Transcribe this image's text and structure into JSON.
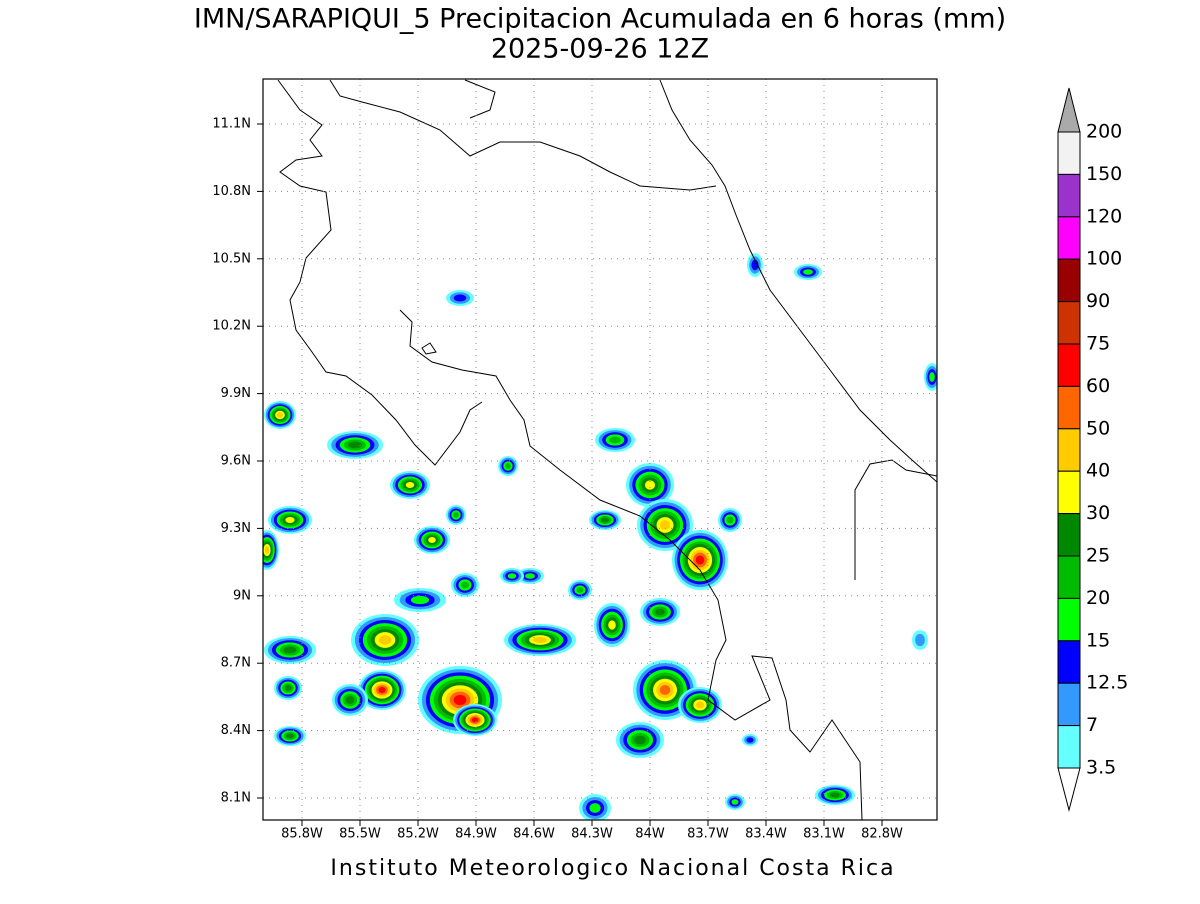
{
  "title": "IMN/SARAPIQUI_5 Precipitacion Acumulada en 6 horas (mm)",
  "subtitle": "2025-09-26 12Z",
  "lat_labels": [
    "11.1N",
    "10.8N",
    "10.5N",
    "10.2N",
    "9.9N",
    "9.6N",
    "9.3N",
    "9N",
    "8.7N",
    "8.4N",
    "8.1N"
  ],
  "lon_labels": [
    "85.8W",
    "85.5W",
    "85.2W",
    "84.9W",
    "84.6W",
    "84.3W",
    "84W",
    "83.7W",
    "83.4W",
    "83.1W",
    "82.8W"
  ],
  "legend": {
    "labels": [
      "200",
      "150",
      "120",
      "100",
      "90",
      "75",
      "60",
      "50",
      "40",
      "30",
      "25",
      "20",
      "15",
      "12.5",
      "7",
      "3.5"
    ],
    "colors": [
      "#f2f2f2",
      "#9933cc",
      "#ff00ff",
      "#990000",
      "#cc3300",
      "#ff0000",
      "#ff6600",
      "#ffcc00",
      "#ffff00",
      "#008800",
      "#00bb00",
      "#00ff00",
      "#0000ff",
      "#3399ff",
      "#66ffff"
    ],
    "over_color": "#aaaaaa",
    "under_color": "#ffffff"
  },
  "footer": "Instituto Meteorologico Nacional Costa Rica"
}
